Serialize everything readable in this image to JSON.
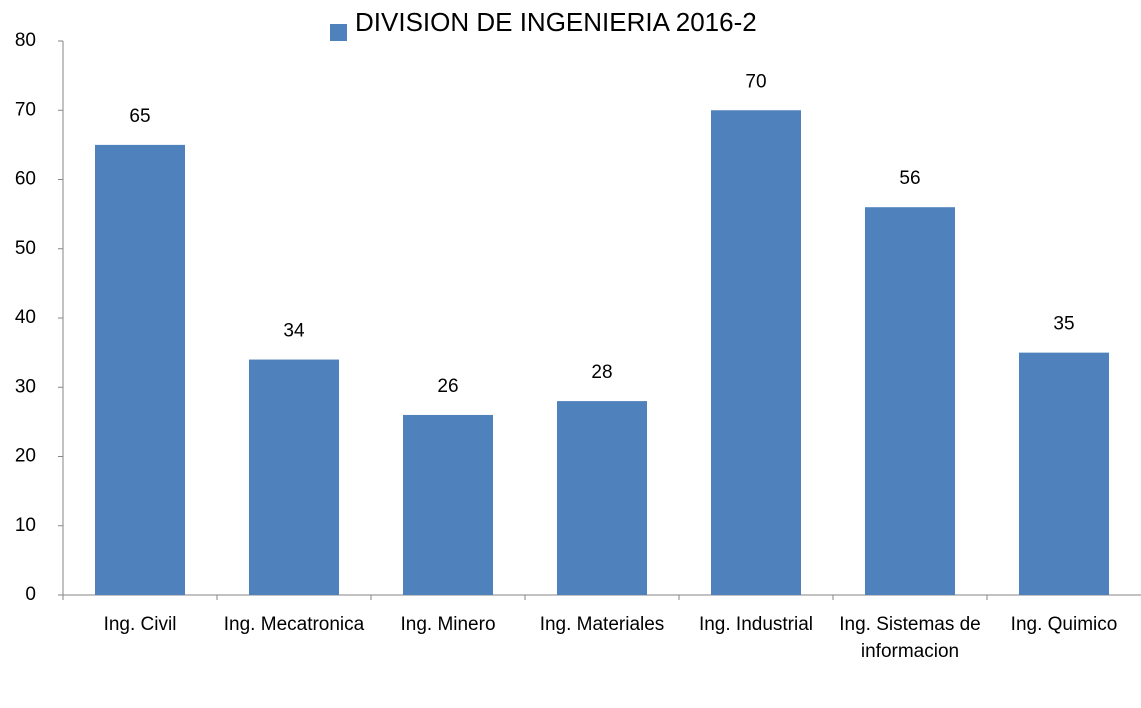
{
  "chart_data": {
    "type": "bar",
    "categories": [
      "Ing. Civil",
      "Ing. Mecatronica",
      "Ing. Minero",
      "Ing. Materiales",
      "Ing. Industrial",
      "Ing. Sistemas de informacion",
      "Ing. Quimico"
    ],
    "series": [
      {
        "name": "DIVISION DE INGENIERIA 2016-2",
        "color": "#4f81bd",
        "values": [
          65,
          34,
          26,
          28,
          70,
          56,
          35
        ]
      }
    ],
    "ylim": [
      0,
      80
    ],
    "yticks": [
      0,
      10,
      20,
      30,
      40,
      50,
      60,
      70,
      80
    ],
    "grid": false,
    "legend": "top"
  }
}
